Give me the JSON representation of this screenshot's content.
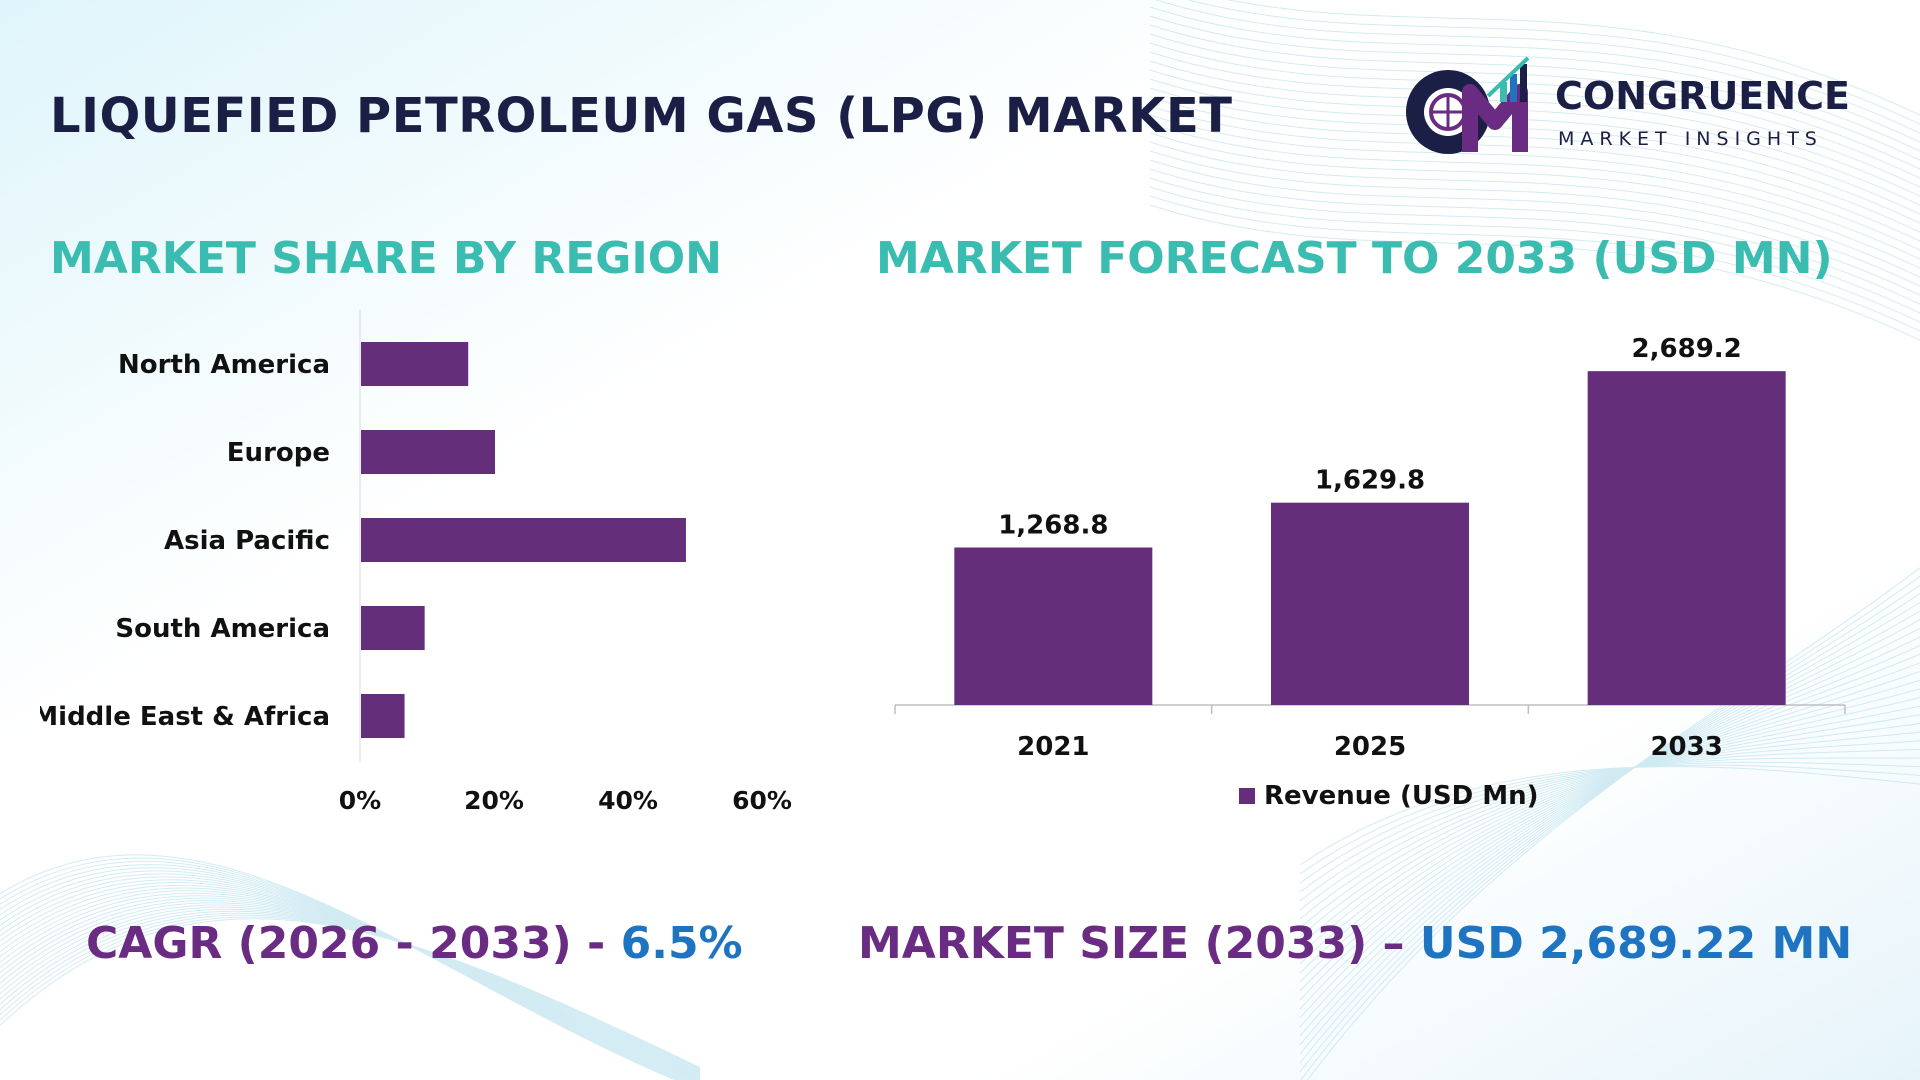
{
  "page": {
    "title": "LIQUEFIED PETROLEUM GAS (LPG) MARKET",
    "brand": {
      "name": "CONGRUENCE",
      "tagline": "MARKET INSIGHTS"
    },
    "cagr": {
      "label": "CAGR (2026 - 2033) - ",
      "value": "6.5%"
    },
    "market_size": {
      "label": "MARKET SIZE (2033) – ",
      "value": "USD 2,689.22 MN"
    }
  },
  "colors": {
    "bar": "#652e7a",
    "section_title": "#3bbcb1",
    "stat_label": "#6a2c82",
    "stat_value": "#1f74c2",
    "title": "#1b1f45"
  },
  "chart_data": [
    {
      "type": "bar",
      "orientation": "horizontal",
      "title": "MARKET SHARE BY REGION",
      "categories": [
        "North America",
        "Europe",
        "Asia Pacific",
        "South America",
        "Middle East & Africa"
      ],
      "values": [
        16,
        20,
        48.5,
        9.5,
        6.5
      ],
      "xlim": [
        0,
        60
      ],
      "ticks": [
        "0%",
        "20%",
        "40%",
        "60%"
      ],
      "grid": false
    },
    {
      "type": "bar",
      "title": "MARKET FORECAST TO 2033 (USD MN)",
      "categories": [
        "2021",
        "2025",
        "2033"
      ],
      "series": [
        {
          "name": "Revenue (USD Mn)",
          "values": [
            1268.8,
            1629.8,
            2689.2
          ]
        }
      ],
      "data_labels": [
        "1,268.8",
        "1,629.8",
        "2,689.2"
      ],
      "ylim": [
        0,
        2900
      ],
      "grid": false,
      "legend": "bottom"
    }
  ]
}
